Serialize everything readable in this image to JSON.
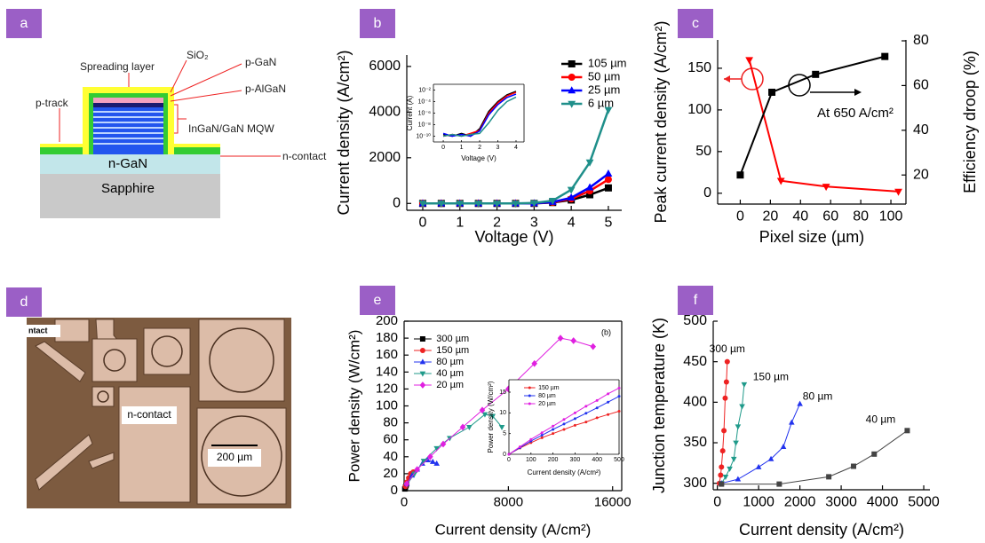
{
  "panel_labels": [
    "a",
    "b",
    "c",
    "d",
    "e",
    "f"
  ],
  "diagram": {
    "labels": {
      "spreading_layer": "Spreading layer",
      "sio2": "SiO₂",
      "p_gan": "p-GaN",
      "p_algan": "p-AlGaN",
      "p_track": "p-track",
      "mqw": "InGaN/GaN MQW",
      "n_gan": "n-GaN",
      "n_contact": "n-contact",
      "sapphire": "Sapphire"
    }
  },
  "micrograph": {
    "labels": {
      "corner": "ntact",
      "n_contact": "n-contact",
      "scale_bar": "200 µm"
    }
  },
  "chart_data": [
    {
      "type": "line",
      "xlabel": "Voltage (V)",
      "ylabel": "Current density (A/cm²)",
      "xlim": [
        -0.43,
        5.36
      ],
      "xticks": [
        0,
        1,
        2,
        3,
        4,
        5
      ],
      "ylim": [
        -300,
        6500
      ],
      "yticks": [
        0,
        2000,
        4000,
        6000
      ],
      "legend": "upper right",
      "series": [
        {
          "name": "105 µm",
          "color": "#000000",
          "marker": "square",
          "x": [
            0,
            0.5,
            1,
            1.5,
            2,
            2.5,
            3,
            3.5,
            4,
            4.5,
            5
          ],
          "values": [
            0,
            0,
            0,
            0,
            0,
            0,
            3,
            40,
            150,
            380,
            680
          ]
        },
        {
          "name": "50 µm",
          "color": "#ff0000",
          "marker": "circle",
          "x": [
            0,
            0.5,
            1,
            1.5,
            2,
            2.5,
            3,
            3.5,
            4,
            4.5,
            5
          ],
          "values": [
            0,
            0,
            0,
            0,
            0,
            0,
            4,
            50,
            200,
            550,
            1050
          ]
        },
        {
          "name": "25 µm",
          "color": "#0000ff",
          "marker": "triangle",
          "x": [
            0,
            0.5,
            1,
            1.5,
            2,
            2.5,
            3,
            3.5,
            4,
            4.5,
            5
          ],
          "values": [
            0,
            0,
            0,
            0,
            0,
            0,
            5,
            60,
            250,
            700,
            1300
          ]
        },
        {
          "name": "6 µm",
          "color": "#1f8f8a",
          "marker": "triangle-down",
          "x": [
            0,
            0.5,
            1,
            1.5,
            2,
            2.5,
            3,
            3.5,
            4,
            4.5,
            5
          ],
          "values": [
            0,
            0,
            0,
            0,
            0,
            0,
            20,
            120,
            600,
            1800,
            4100
          ]
        }
      ]
    },
    {
      "type": "line",
      "xlabel": "Voltage (V)",
      "ylabel": "Current (A)",
      "log_y": true,
      "xlim": [
        -0.54,
        4.44
      ],
      "xticks": [
        0,
        1,
        2,
        3,
        4
      ],
      "ylim": [
        1e-11,
        0.1
      ],
      "yticks": [
        {
          "value": 0.01,
          "label": "10⁻²"
        },
        {
          "value": 0.0001,
          "label": "10⁻⁴"
        },
        {
          "value": 1e-06,
          "label": "10⁻⁶"
        },
        {
          "value": 1e-08,
          "label": "10⁻⁸"
        },
        {
          "value": 1e-10,
          "label": "10⁻¹⁰"
        }
      ],
      "series": [
        {
          "color": "#000000",
          "x": [
            0,
            0.5,
            1,
            1.5,
            2,
            2.5,
            3,
            3.5,
            4
          ],
          "values": [
            2e-10,
            1e-10,
            3e-10,
            1e-10,
            2e-09,
            2e-06,
            0.0001,
            0.0015,
            0.006
          ]
        },
        {
          "color": "#ff0000",
          "x": [
            0,
            0.5,
            1,
            1.5,
            2,
            2.5,
            3,
            3.5,
            4
          ],
          "values": [
            1e-10,
            2e-10,
            1e-10,
            3e-10,
            1e-09,
            1e-06,
            6e-05,
            0.001,
            0.004
          ]
        },
        {
          "color": "#0000ff",
          "x": [
            0,
            0.5,
            1,
            1.5,
            2,
            2.5,
            3,
            3.5,
            4
          ],
          "values": [
            3e-10,
            1e-10,
            2e-10,
            1e-10,
            8e-10,
            5e-07,
            3e-05,
            0.0005,
            0.002
          ]
        },
        {
          "color": "#1f8f8a",
          "x": [
            0,
            0.5,
            1,
            1.5,
            2,
            2.5,
            3,
            3.5,
            4
          ],
          "values": [
            1e-10,
            2e-10,
            1e-10,
            2e-10,
            3e-10,
            2e-08,
            3e-06,
            0.0001,
            0.0006
          ]
        }
      ]
    },
    {
      "type": "line",
      "xlabel": "Pixel size (µm)",
      "ylabel": "Peak current density (A/cm²)",
      "y2label": "Efficiency droop (%)",
      "annotation": "At 650 A/cm²",
      "xlim": [
        -15,
        110
      ],
      "xticks": [
        0,
        20,
        40,
        60,
        80,
        100
      ],
      "ylim": [
        -13,
        184
      ],
      "yticks": [
        0,
        50,
        100,
        150
      ],
      "y2lim": [
        7,
        80.4
      ],
      "y2ticks": [
        20,
        40,
        60,
        80
      ],
      "series": [
        {
          "color": "#ff0000",
          "marker": "triangle-down",
          "x": [
            6,
            27,
            57,
            105
          ],
          "values": [
            160,
            15,
            8,
            2
          ]
        },
        {
          "color": "#000000",
          "marker": "square",
          "axis": "y2",
          "x": [
            0,
            21,
            50,
            96
          ],
          "values": [
            20,
            57,
            65,
            73
          ]
        }
      ]
    },
    {
      "type": "line",
      "xlabel": "Current density (A/cm²)",
      "ylabel": "Power density (W/cm²)",
      "annotation": "(b)",
      "xlim": [
        0,
        16700
      ],
      "xticks": [
        0,
        8000,
        16000
      ],
      "ylim": [
        0,
        200
      ],
      "yticks": [
        0,
        20,
        40,
        60,
        80,
        100,
        120,
        140,
        160,
        180,
        200
      ],
      "legend": "upper left",
      "series": [
        {
          "name": "300 µm",
          "color": "#000000",
          "marker": "square",
          "x": [
            50,
            100,
            150,
            200
          ],
          "values": [
            2,
            4,
            6,
            8
          ]
        },
        {
          "name": "150 µm",
          "color": "#ee2222",
          "marker": "circle",
          "x": [
            100,
            200,
            350,
            500,
            700
          ],
          "values": [
            5,
            10,
            15,
            20,
            22
          ]
        },
        {
          "name": "80 µm",
          "color": "#2233ee",
          "marker": "triangle",
          "x": [
            200,
            600,
            1000,
            1400,
            1800,
            2200,
            2500
          ],
          "values": [
            8,
            18,
            25,
            32,
            36,
            34,
            32
          ]
        },
        {
          "name": "40 µm",
          "color": "#1f9a8a",
          "marker": "triangle-down",
          "x": [
            200,
            800,
            1500,
            2500,
            3500,
            5000,
            6200,
            6800,
            7500
          ],
          "values": [
            7,
            20,
            35,
            50,
            62,
            75,
            90,
            88,
            75
          ]
        },
        {
          "name": "20 µm",
          "color": "#e020e0",
          "marker": "diamond",
          "x": [
            200,
            1000,
            2000,
            3000,
            4500,
            6000,
            8000,
            10000,
            12000,
            13000,
            14500
          ],
          "values": [
            8,
            25,
            40,
            55,
            75,
            95,
            120,
            150,
            180,
            177,
            170
          ]
        }
      ]
    },
    {
      "type": "line",
      "xlabel": "Current density (A/cm²)",
      "ylabel": "Power density (W/cm²)",
      "xlim": [
        0,
        500
      ],
      "xticks": [
        0,
        100,
        200,
        300,
        400,
        500
      ],
      "ylim": [
        0,
        18
      ],
      "yticks": [
        0,
        5,
        10,
        15
      ],
      "legend": "upper left",
      "series": [
        {
          "name": "150 µm",
          "color": "#ee2222",
          "marker": "circle",
          "x": [
            0,
            50,
            100,
            150,
            200,
            250,
            300,
            350,
            400,
            450,
            500
          ],
          "values": [
            0,
            1.5,
            2.8,
            4,
            5,
            6,
            7,
            7.8,
            8.8,
            9.6,
            10.4
          ]
        },
        {
          "name": "80 µm",
          "color": "#2233ee",
          "marker": "circle",
          "x": [
            0,
            50,
            100,
            150,
            200,
            250,
            300,
            350,
            400,
            450,
            500
          ],
          "values": [
            0,
            1.6,
            3.2,
            4.6,
            6,
            7.3,
            8.6,
            9.9,
            11.2,
            12.6,
            14
          ]
        },
        {
          "name": "20 µm",
          "color": "#e020e0",
          "marker": "circle",
          "x": [
            0,
            50,
            100,
            150,
            200,
            250,
            300,
            350,
            400,
            450,
            500
          ],
          "values": [
            0,
            1.8,
            3.6,
            5.2,
            6.8,
            8.4,
            10,
            11.6,
            13,
            14.6,
            16
          ]
        }
      ]
    },
    {
      "type": "line",
      "xlabel": "Current density (A/cm²)",
      "ylabel": "Junction temperature (K)",
      "xlim": [
        -100,
        5150
      ],
      "xticks": [
        0,
        1000,
        2000,
        3000,
        4000,
        5000
      ],
      "ylim": [
        292,
        500
      ],
      "yticks": [
        300,
        350,
        400,
        450,
        500
      ],
      "series": [
        {
          "name": "300 µm",
          "color": "#ee2222",
          "marker": "circle",
          "x": [
            50,
            80,
            100,
            130,
            160,
            190,
            220,
            240
          ],
          "values": [
            300,
            310,
            320,
            340,
            365,
            405,
            425,
            450
          ]
        },
        {
          "name": "150 µm",
          "color": "#1f9a8a",
          "marker": "triangle-down",
          "x": [
            100,
            200,
            300,
            400,
            450,
            500,
            600,
            650
          ],
          "values": [
            300,
            308,
            318,
            330,
            350,
            370,
            395,
            422
          ]
        },
        {
          "name": "80 µm",
          "color": "#2233ee",
          "marker": "triangle",
          "x": [
            100,
            500,
            1000,
            1300,
            1600,
            1800,
            2000
          ],
          "values": [
            300,
            305,
            320,
            330,
            345,
            375,
            398
          ]
        },
        {
          "name": "40 µm",
          "color": "#444444",
          "marker": "square",
          "x": [
            100,
            1500,
            2700,
            3300,
            3800,
            4600
          ],
          "values": [
            299,
            299,
            308,
            321,
            336,
            365
          ]
        }
      ]
    }
  ]
}
